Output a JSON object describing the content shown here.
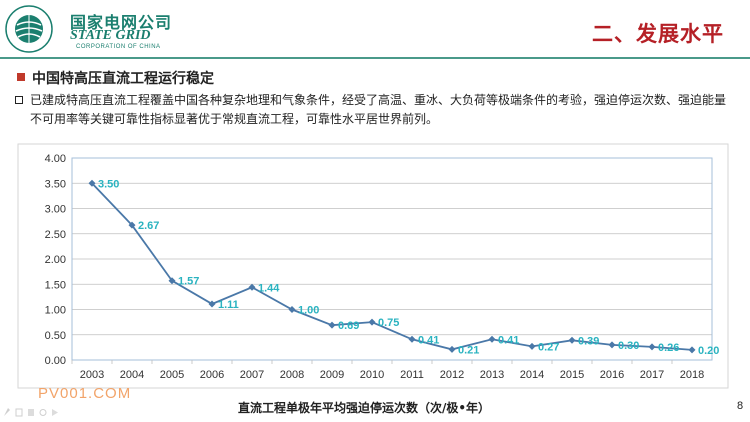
{
  "header": {
    "logo_cn": "国家电网公司",
    "logo_en": "STATE GRID",
    "logo_sub": "CORPORATION OF CHINA",
    "page_title": "二、发展水平"
  },
  "section": {
    "title": "中国特高压直流工程运行稳定",
    "body": "已建成特高压直流工程覆盖中国各种复杂地理和气象条件，经受了高温、重冰、大负荷等极端条件的考验，强迫停运次数、强迫能量不可用率等关键可靠性指标显著优于常规直流工程，可靠性水平居世界前列。"
  },
  "chart_data": {
    "type": "line",
    "x": [
      "2003",
      "2004",
      "2005",
      "2006",
      "2007",
      "2008",
      "2009",
      "2010",
      "2011",
      "2012",
      "2013",
      "2014",
      "2015",
      "2016",
      "2017",
      "2018"
    ],
    "series": [
      {
        "values": [
          3.5,
          2.67,
          1.57,
          1.11,
          1.44,
          1.0,
          0.69,
          0.75,
          0.41,
          0.21,
          0.41,
          0.27,
          0.39,
          0.3,
          0.26,
          0.2
        ]
      }
    ],
    "data_labels": [
      "3.50",
      "2.67",
      "1.57",
      "1.11",
      "1.44",
      "1.00",
      "0.69",
      "0.75",
      "0.41",
      "0.21",
      "0.41",
      "0.27",
      "0.39",
      "0.30",
      "0.26",
      "0.20"
    ],
    "y_ticks": [
      "0.00",
      "0.50",
      "1.00",
      "1.50",
      "2.00",
      "2.50",
      "3.00",
      "3.50",
      "4.00"
    ],
    "ylim": [
      0,
      4
    ],
    "grid": true,
    "colors": {
      "line": "#4a78a8",
      "label": "#2ab3c0",
      "grid": "#bfbfbf",
      "plot_border": "#a6bfd9"
    }
  },
  "caption": "直流工程单极年平均强迫停运次数（次/极•年）",
  "watermark": "PV001.COM",
  "page_number": "8",
  "icons": {
    "logo": "state-grid-globe-logo",
    "toolbar": "slide-toolbar-icons"
  }
}
